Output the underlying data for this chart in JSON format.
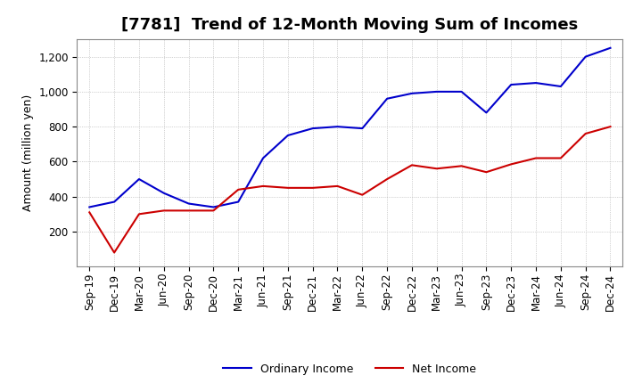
{
  "title": "[7781]  Trend of 12-Month Moving Sum of Incomes",
  "ylabel": "Amount (million yen)",
  "background_color": "#ffffff",
  "grid_color": "#aaaaaa",
  "x_labels": [
    "Sep-19",
    "Dec-19",
    "Mar-20",
    "Jun-20",
    "Sep-20",
    "Dec-20",
    "Mar-21",
    "Jun-21",
    "Sep-21",
    "Dec-21",
    "Mar-22",
    "Jun-22",
    "Sep-22",
    "Dec-22",
    "Mar-23",
    "Jun-23",
    "Sep-23",
    "Dec-23",
    "Mar-24",
    "Jun-24",
    "Sep-24",
    "Dec-24"
  ],
  "ordinary_income": [
    340,
    370,
    500,
    420,
    360,
    340,
    370,
    620,
    750,
    790,
    800,
    790,
    960,
    990,
    1000,
    1000,
    880,
    1040,
    1050,
    1030,
    1200,
    1250
  ],
  "net_income": [
    310,
    80,
    300,
    320,
    320,
    320,
    440,
    460,
    450,
    450,
    460,
    410,
    500,
    580,
    560,
    575,
    540,
    585,
    620,
    620,
    760,
    800
  ],
  "ordinary_color": "#0000cc",
  "net_color": "#cc0000",
  "ylim": [
    0,
    1300
  ],
  "yticks": [
    200,
    400,
    600,
    800,
    1000,
    1200
  ],
  "legend_labels": [
    "Ordinary Income",
    "Net Income"
  ],
  "title_fontsize": 13,
  "axis_fontsize": 9,
  "tick_fontsize": 8.5
}
